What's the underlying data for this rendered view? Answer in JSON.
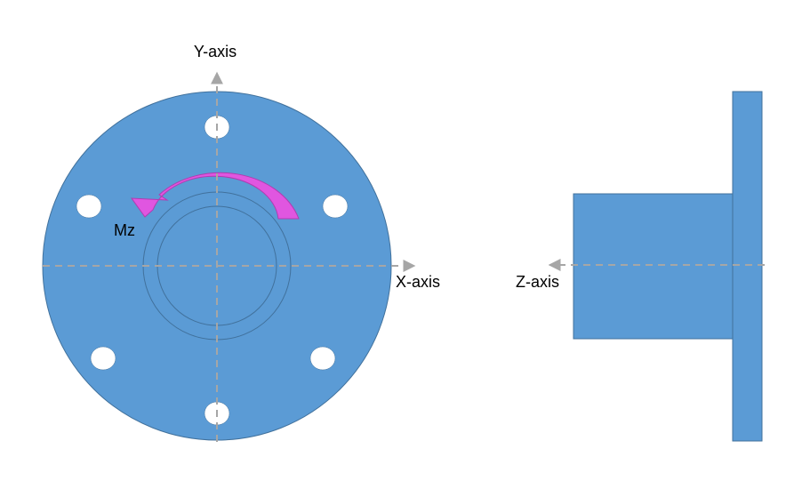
{
  "labels": {
    "y_axis": "Y-axis",
    "x_axis": "X-axis",
    "z_axis": "Z-axis",
    "moment": "Mz"
  },
  "colors": {
    "part_fill": "#5b9bd5",
    "part_stroke": "#41719c",
    "hole_fill": "#ffffff",
    "axis_line": "#a6a6a6",
    "moment_arrow_fill": "#e056e0",
    "moment_arrow_stroke": "#b03cb0"
  }
}
